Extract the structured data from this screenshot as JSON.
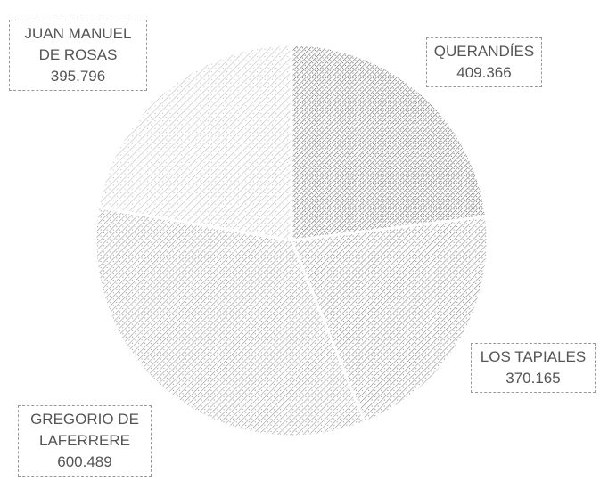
{
  "chart_data": {
    "type": "pie",
    "categories": [
      "QUERANDÍES",
      "LOS TAPIALES",
      "GREGORIO DE LAFERRERE",
      "JUAN MANUEL DE ROSAS"
    ],
    "values": [
      409366,
      370165,
      600489,
      395796
    ],
    "value_labels": [
      "409.366",
      "370.165",
      "600.489",
      "395.796"
    ],
    "colors": [
      "#6e6e6e",
      "#8a8a8a",
      "#9a9a9a",
      "#bdbdbd"
    ]
  }
}
